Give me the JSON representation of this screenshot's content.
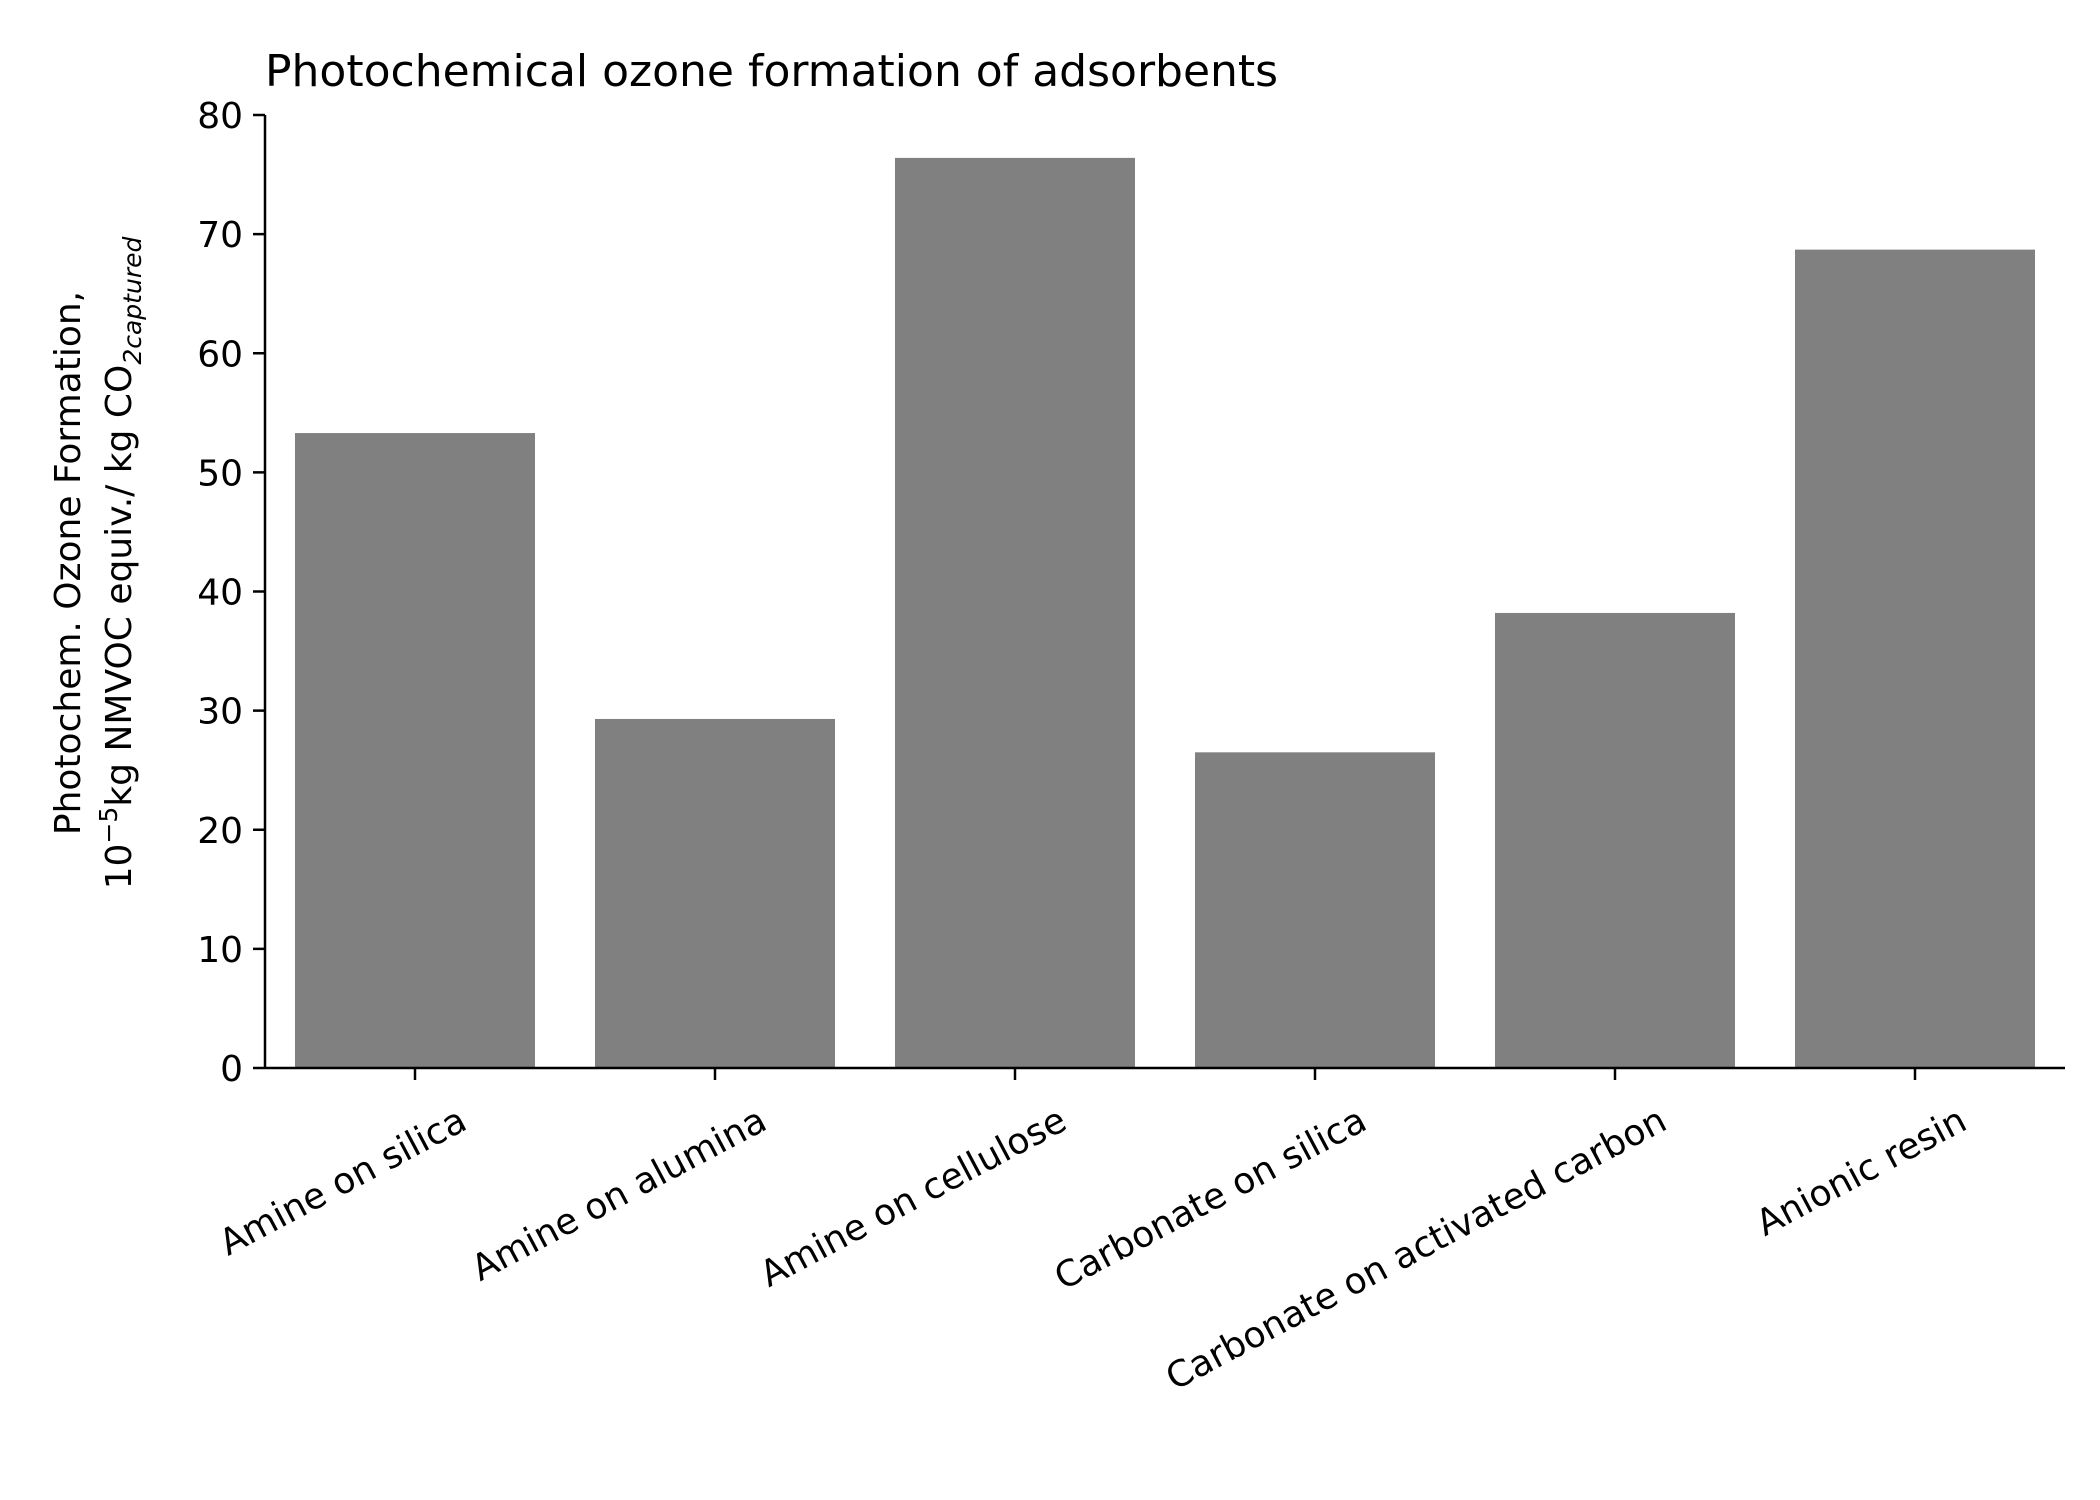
{
  "chart_data": {
    "type": "bar",
    "title": "Photochemical ozone formation of adsorbents",
    "ylabel": {
      "line1": "Photochem. Ozone Formation,",
      "line2_prefix": "10",
      "line2_exp": "−5",
      "line2_mid": "kg NMVOC equiv./ kg CO",
      "line2_sub": "2captured"
    },
    "xlabel": "",
    "categories": [
      "Amine on silica",
      "Amine on alumina",
      "Amine on cellulose",
      "Carbonate on silica",
      "Carbonate on activated carbon",
      "Anionic resin"
    ],
    "values": [
      53.3,
      29.3,
      76.4,
      26.5,
      38.2,
      68.7
    ],
    "ylim": [
      0,
      80
    ],
    "yticks": [
      0,
      10,
      20,
      30,
      40,
      50,
      60,
      70,
      80
    ],
    "bar_color": "#808080",
    "grid": false,
    "legend": "none"
  }
}
